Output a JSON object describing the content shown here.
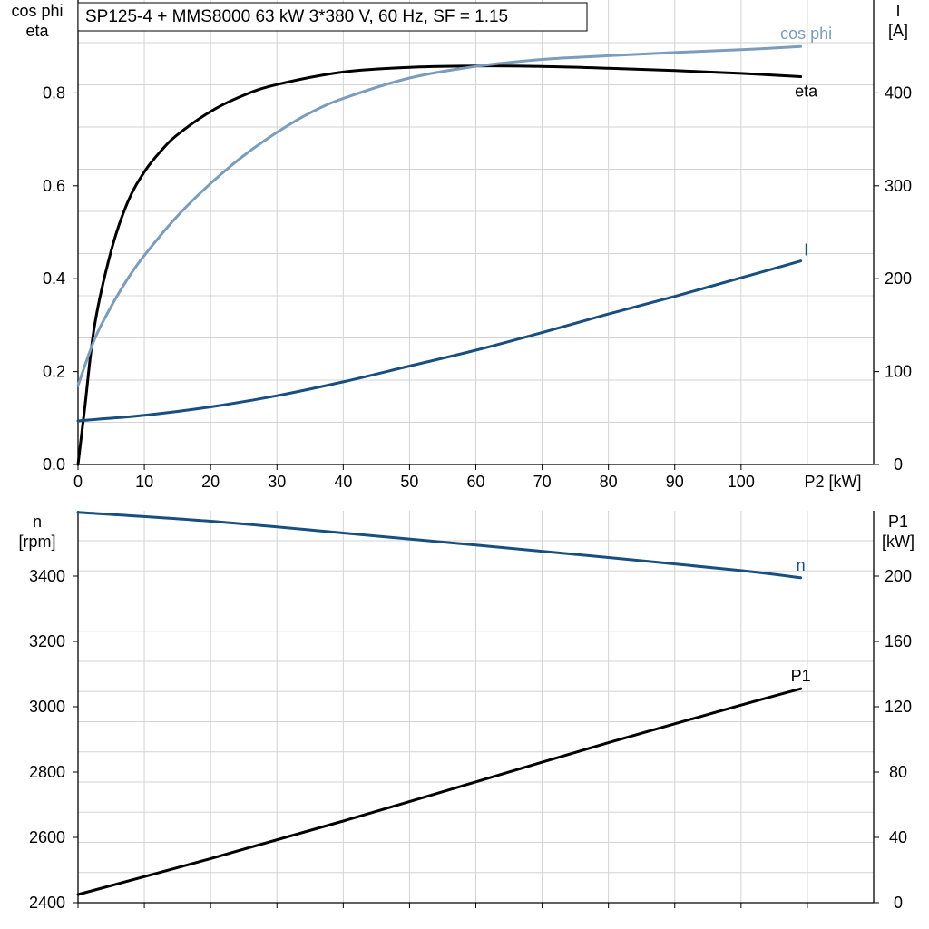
{
  "title": "SP125-4 + MMS8000   63 kW   3*380 V, 60 Hz, SF = 1.15",
  "colors": {
    "eta": "#000000",
    "cos_phi": "#7b9cbc",
    "I": "#184e80",
    "n": "#184e80",
    "P1": "#000000",
    "grid": "#d3d3d3"
  },
  "chart_data": [
    {
      "type": "line",
      "title": "SP125-4 + MMS8000   63 kW   3*380 V, 60 Hz, SF = 1.15",
      "xlabel": "P2 [kW]",
      "ylabel_left": [
        "cos phi",
        "eta"
      ],
      "ylabel_right": [
        "I",
        "[A]"
      ],
      "xlim": [
        0,
        120
      ],
      "ylim_left": [
        0,
        1.0
      ],
      "ylim_right": [
        0,
        500
      ],
      "x_ticks": [
        0,
        10,
        20,
        30,
        40,
        50,
        60,
        70,
        80,
        90,
        100
      ],
      "y_ticks_left": [
        "0.0",
        "0.2",
        "0.4",
        "0.6",
        "0.8"
      ],
      "y_ticks_right": [
        "0",
        "100",
        "200",
        "300",
        "400"
      ],
      "grid": true,
      "series": [
        {
          "name": "eta",
          "axis": "left",
          "color": "#000000",
          "x": [
            0,
            1,
            2.5,
            5,
            7.5,
            10,
            12.5,
            15,
            20,
            25,
            30,
            40,
            50,
            60,
            70,
            80,
            90,
            100,
            109
          ],
          "y": [
            0.0,
            0.12,
            0.3,
            0.46,
            0.565,
            0.63,
            0.675,
            0.71,
            0.76,
            0.795,
            0.818,
            0.845,
            0.855,
            0.858,
            0.857,
            0.853,
            0.848,
            0.842,
            0.835
          ]
        },
        {
          "name": "cos phi",
          "axis": "left",
          "color": "#7b9cbc",
          "x": [
            0,
            2.5,
            5,
            7.5,
            10,
            15,
            20,
            25,
            30,
            35,
            40,
            50,
            60,
            70,
            80,
            90,
            100,
            109
          ],
          "y": [
            0.17,
            0.27,
            0.34,
            0.4,
            0.45,
            0.535,
            0.605,
            0.665,
            0.715,
            0.757,
            0.788,
            0.832,
            0.857,
            0.872,
            0.88,
            0.887,
            0.893,
            0.9
          ]
        },
        {
          "name": "I",
          "axis": "right",
          "color": "#184e80",
          "x": [
            0,
            10,
            20,
            30,
            40,
            50,
            60,
            70,
            80,
            90,
            100,
            109
          ],
          "y": [
            47,
            53,
            62,
            74,
            89,
            106,
            123,
            142,
            162,
            181,
            201,
            219
          ]
        }
      ]
    },
    {
      "type": "line",
      "xlim": [
        0,
        120
      ],
      "ylabel_left": [
        "n",
        "[rpm]"
      ],
      "ylabel_right": [
        "P1",
        "[kW]"
      ],
      "ylim_left": [
        2400,
        3600
      ],
      "ylim_right": [
        0,
        240
      ],
      "y_ticks_left": [
        "2400",
        "2600",
        "2800",
        "3000",
        "3200",
        "3400"
      ],
      "y_ticks_right": [
        "0",
        "40",
        "80",
        "120",
        "160",
        "200"
      ],
      "grid": true,
      "series": [
        {
          "name": "n",
          "axis": "left",
          "color": "#184e80",
          "x": [
            0,
            20,
            40,
            60,
            80,
            100,
            109
          ],
          "y": [
            3595,
            3568,
            3532,
            3495,
            3457,
            3417,
            3395
          ]
        },
        {
          "name": "P1",
          "axis": "right",
          "color": "#000000",
          "x": [
            0,
            20,
            40,
            60,
            80,
            100,
            109
          ],
          "y": [
            5,
            27,
            50,
            74,
            98,
            121,
            131
          ]
        }
      ]
    }
  ]
}
